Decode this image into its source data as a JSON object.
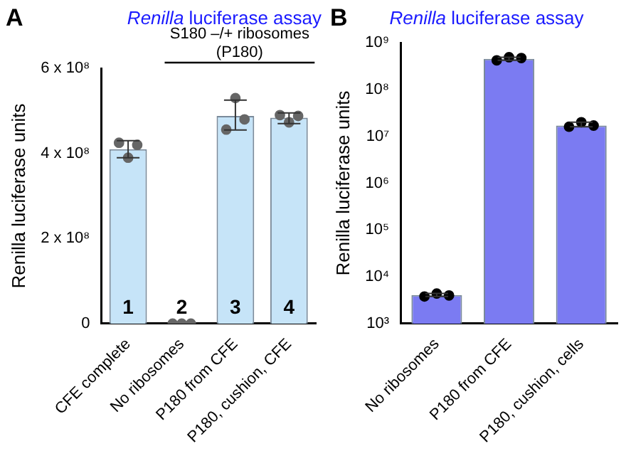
{
  "chart_data": [
    {
      "type": "bar",
      "title": "Renilla luciferase assay",
      "ylabel": "Renilla luciferase units",
      "categories": [
        "CFE complete",
        "No ribosomes",
        "P180 from CFE",
        "P180, cushion, CFE"
      ],
      "series": [
        {
          "type": "bar",
          "color": "#c6e4f8",
          "values": [
            410000000,
            0,
            488000000,
            484000000
          ],
          "errors": [
            [
              390000000,
              430000000
            ],
            null,
            [
              455000000,
              525000000
            ],
            [
              470000000,
              495000000
            ]
          ]
        },
        {
          "type": "scatter",
          "color": "#666666",
          "x": [
            "CFE complete",
            "CFE complete",
            "CFE complete",
            "No ribosomes",
            "No ribosomes",
            "No ribosomes",
            "P180 from CFE",
            "P180 from CFE",
            "P180 from CFE",
            "P180, cushion, CFE",
            "P180, cushion, CFE",
            "P180, cushion, CFE"
          ],
          "values": [
            425000000,
            390000000,
            420000000,
            0,
            0,
            0,
            456000000,
            530000000,
            480000000,
            490000000,
            473000000,
            488000000
          ]
        }
      ],
      "ylim": [
        0,
        600000000
      ],
      "yticks": [
        {
          "value": 0,
          "label": "0"
        },
        {
          "value": 200000000,
          "label": "2 x 10⁸"
        },
        {
          "value": 400000000,
          "label": "4 x 10⁸"
        },
        {
          "value": 600000000,
          "label": "6 x 10⁸"
        }
      ],
      "grid": false,
      "legend": false,
      "marker": "circle",
      "annotations": [
        "A",
        "S180 –/+ ribosomes\n(P180)",
        "1",
        "2",
        "3",
        "4"
      ]
    },
    {
      "type": "bar",
      "title": "Renilla luciferase assay",
      "ylabel": "Renilla luciferase units",
      "categories": [
        "No ribosomes",
        "P180 from CFE",
        "P180, cushion, cells"
      ],
      "series": [
        {
          "type": "bar",
          "color": "#7b7bf2",
          "values": [
            4100,
            450000000,
            17000000
          ],
          "errors": [
            [
              3800,
              4400
            ],
            [
              420000000,
              490000000
            ],
            [
              16000000,
              20000000
            ]
          ]
        },
        {
          "type": "scatter",
          "color": "#000000",
          "x": [
            "No ribosomes",
            "No ribosomes",
            "No ribosomes",
            "P180 from CFE",
            "P180 from CFE",
            "P180 from CFE",
            "P180, cushion, cells",
            "P180, cushion, cells",
            "P180, cushion, cells"
          ],
          "values": [
            3800,
            4400,
            4000,
            420000000,
            490000000,
            470000000,
            16000000,
            20000000,
            17000000
          ]
        }
      ],
      "log": true,
      "ylim": [
        1000,
        1000000000
      ],
      "yticks": [
        {
          "value": 1000,
          "label": "10³"
        },
        {
          "value": 10000,
          "label": "10⁴"
        },
        {
          "value": 100000,
          "label": "10⁵"
        },
        {
          "value": 1000000,
          "label": "10⁶"
        },
        {
          "value": 10000000,
          "label": "10⁷"
        },
        {
          "value": 100000000,
          "label": "10⁸"
        },
        {
          "value": 1000000000,
          "label": "10⁹"
        }
      ],
      "grid": false,
      "legend": false,
      "marker": "circle",
      "annotations": [
        "B"
      ]
    }
  ]
}
